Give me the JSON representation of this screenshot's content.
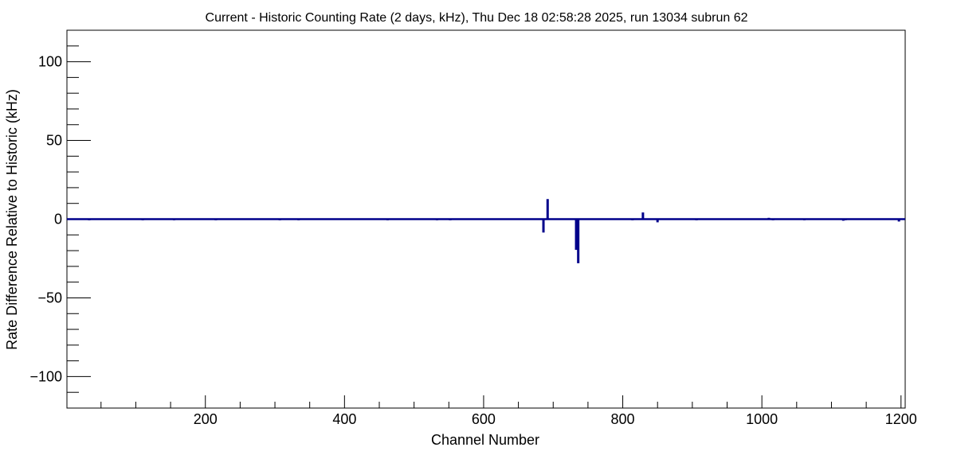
{
  "chart_data": {
    "type": "bar",
    "title": "Current - Historic Counting Rate (2 days, kHz), Thu Dec 18 02:58:28 2025, run 13034 subrun 62",
    "xlabel": "Channel Number",
    "ylabel": "Rate Difference Relative to Historic (kHz)",
    "xlim": [
      1,
      1206
    ],
    "ylim": [
      -120,
      120
    ],
    "x_major_ticks": [
      200,
      400,
      600,
      800,
      1000,
      1200
    ],
    "x_tick_labels": [
      "200",
      "400",
      "600",
      "800",
      "1000",
      "1200"
    ],
    "y_major_ticks": [
      -100,
      -50,
      0,
      50,
      100
    ],
    "y_tick_labels": [
      "−100",
      "−50",
      "0",
      "50",
      "100"
    ],
    "grid": false,
    "legend": "none",
    "series": [
      {
        "line_color": "#00008b",
        "points": [
          {
            "x": 33,
            "y": -0.6
          },
          {
            "x": 110,
            "y": -0.5
          },
          {
            "x": 155,
            "y": -0.4
          },
          {
            "x": 215,
            "y": -0.6
          },
          {
            "x": 307,
            "y": -0.5
          },
          {
            "x": 334,
            "y": -0.4
          },
          {
            "x": 462,
            "y": -0.6
          },
          {
            "x": 533,
            "y": -0.5
          },
          {
            "x": 552,
            "y": -0.6
          },
          {
            "x": 686,
            "y": -8.5
          },
          {
            "x": 692,
            "y": 12.5
          },
          {
            "x": 733,
            "y": -19.5
          },
          {
            "x": 736,
            "y": -28
          },
          {
            "x": 814,
            "y": -0.5
          },
          {
            "x": 829,
            "y": 4
          },
          {
            "x": 850,
            "y": -2
          },
          {
            "x": 906,
            "y": -0.5
          },
          {
            "x": 1010,
            "y": 0.6
          },
          {
            "x": 1016,
            "y": -0.6
          },
          {
            "x": 1061,
            "y": -0.5
          },
          {
            "x": 1117,
            "y": -1
          },
          {
            "x": 1120,
            "y": -0.6
          },
          {
            "x": 1197,
            "y": -1.5
          }
        ]
      }
    ]
  }
}
